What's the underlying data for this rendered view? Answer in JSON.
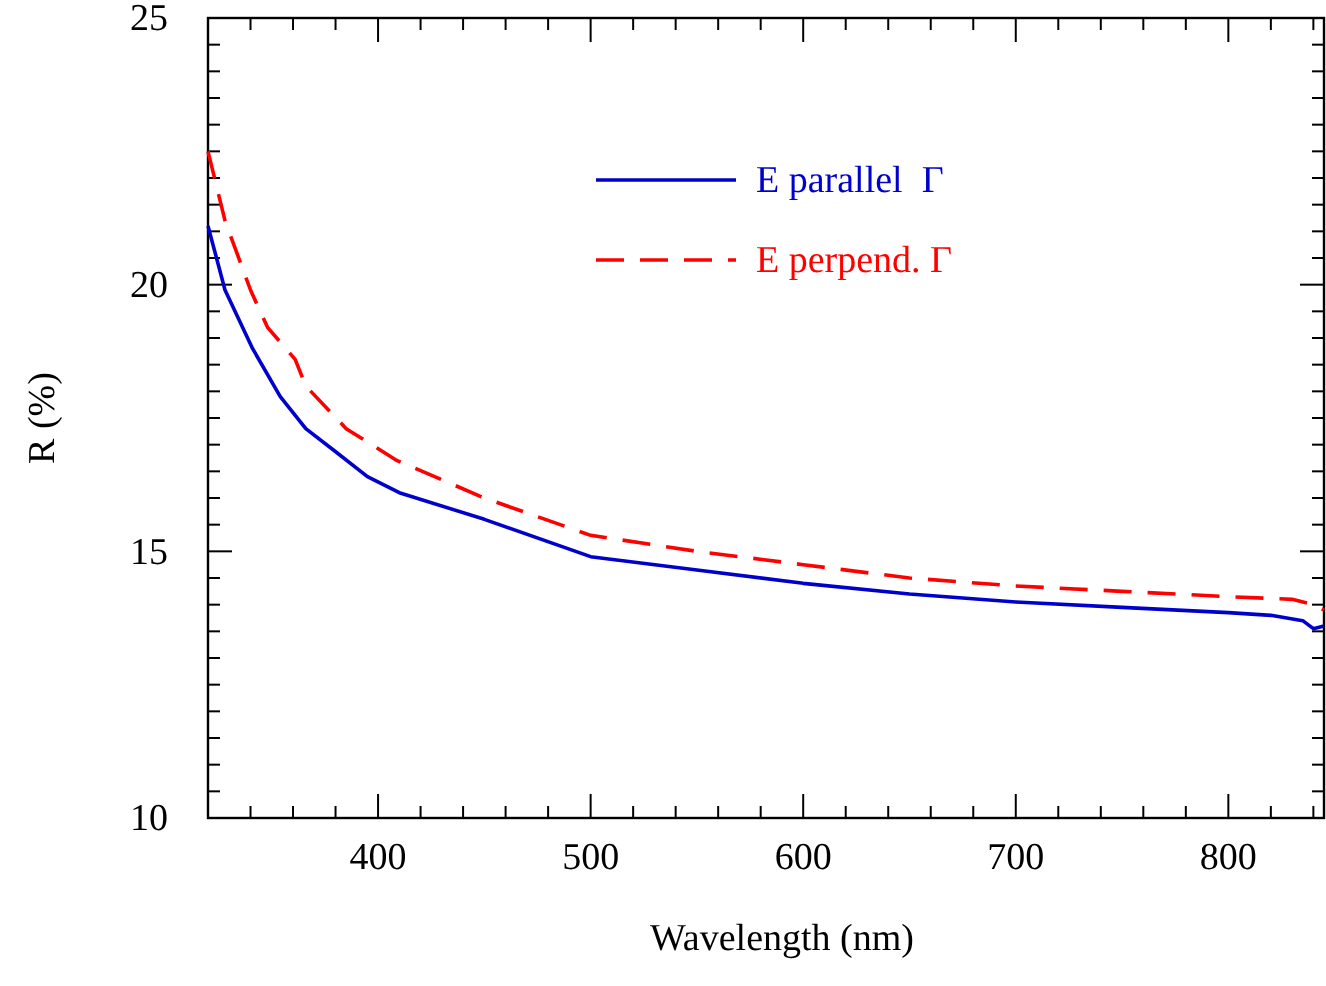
{
  "chart_data": {
    "type": "line",
    "xlabel": "Wavelength (nm)",
    "ylabel": "R (%)",
    "xlim": [
      320,
      845
    ],
    "ylim": [
      10,
      25
    ],
    "xticks": [
      {
        "value": 340,
        "label": null
      },
      {
        "value": 360,
        "label": null
      },
      {
        "value": 380,
        "label": null
      },
      400,
      {
        "value": 420,
        "label": null
      },
      {
        "value": 440,
        "label": null
      },
      {
        "value": 460,
        "label": null
      },
      {
        "value": 480,
        "label": null
      },
      500,
      {
        "value": 520,
        "label": null
      },
      {
        "value": 540,
        "label": null
      },
      {
        "value": 560,
        "label": null
      },
      {
        "value": 580,
        "label": null
      },
      600,
      {
        "value": 620,
        "label": null
      },
      {
        "value": 640,
        "label": null
      },
      {
        "value": 660,
        "label": null
      },
      {
        "value": 680,
        "label": null
      },
      700,
      {
        "value": 720,
        "label": null
      },
      {
        "value": 740,
        "label": null
      },
      {
        "value": 760,
        "label": null
      },
      {
        "value": 780,
        "label": null
      },
      800,
      {
        "value": 820,
        "label": null
      },
      {
        "value": 840,
        "label": null
      }
    ],
    "yticks": [
      10,
      {
        "value": 10.5,
        "label": null
      },
      {
        "value": 11,
        "label": null
      },
      {
        "value": 11.5,
        "label": null
      },
      {
        "value": 12,
        "label": null
      },
      {
        "value": 12.5,
        "label": null
      },
      {
        "value": 13,
        "label": null
      },
      {
        "value": 13.5,
        "label": null
      },
      {
        "value": 14,
        "label": null
      },
      {
        "value": 14.5,
        "label": null
      },
      15,
      {
        "value": 15.5,
        "label": null
      },
      {
        "value": 16,
        "label": null
      },
      {
        "value": 16.5,
        "label": null
      },
      {
        "value": 17,
        "label": null
      },
      {
        "value": 17.5,
        "label": null
      },
      {
        "value": 18,
        "label": null
      },
      {
        "value": 18.5,
        "label": null
      },
      {
        "value": 19,
        "label": null
      },
      {
        "value": 19.5,
        "label": null
      },
      20,
      {
        "value": 20.5,
        "label": null
      },
      {
        "value": 21,
        "label": null
      },
      {
        "value": 21.5,
        "label": null
      },
      {
        "value": 22,
        "label": null
      },
      {
        "value": 22.5,
        "label": null
      },
      {
        "value": 23,
        "label": null
      },
      {
        "value": 23.5,
        "label": null
      },
      {
        "value": 24,
        "label": null
      },
      {
        "value": 24.5,
        "label": null
      },
      25
    ],
    "grid": false,
    "legend": "top right",
    "series": [
      {
        "name": "E parallel  Γ",
        "color": "#0000cc",
        "line_style": "solid",
        "x": [
          320,
          328,
          341,
          354,
          366,
          379,
          395,
          410,
          450,
          500,
          550,
          600,
          650,
          700,
          750,
          800,
          820,
          835,
          840,
          845
        ],
        "values": [
          21.1,
          19.9,
          18.8,
          17.9,
          17.3,
          16.9,
          16.4,
          16.1,
          15.6,
          14.9,
          14.65,
          14.4,
          14.2,
          14.05,
          13.95,
          13.85,
          13.8,
          13.7,
          13.55,
          13.6
        ]
      },
      {
        "name": "E perpend. Γ",
        "color": "#ff0000",
        "line_style": "dashed",
        "x": [
          320,
          328,
          340,
          348,
          361,
          366,
          385,
          409,
          450,
          500,
          550,
          600,
          650,
          700,
          750,
          800,
          830,
          840,
          845
        ],
        "values": [
          22.5,
          21.2,
          19.9,
          19.2,
          18.6,
          18.1,
          17.3,
          16.7,
          16.0,
          15.3,
          15.0,
          14.75,
          14.5,
          14.35,
          14.25,
          14.15,
          14.1,
          14.0,
          13.9
        ]
      }
    ]
  }
}
